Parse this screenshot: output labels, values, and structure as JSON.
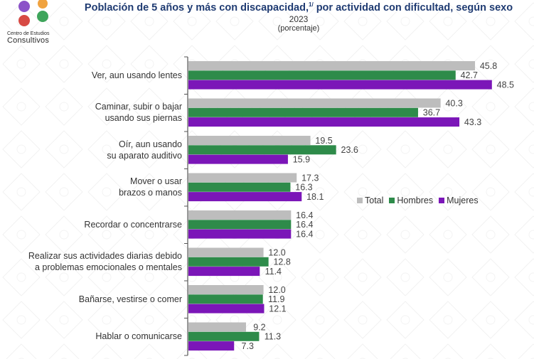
{
  "logo": {
    "line1": "Centro de Estudios",
    "line2": "Consultivos"
  },
  "header": {
    "title": "Población de 5 años y más con discapacidad,",
    "title_sup": "1/",
    "title_rest": " por actividad con dificultad, según sexo",
    "year": "2023",
    "unit": "(porcentaje)"
  },
  "colors": {
    "total": "#bdbdbd",
    "hombres": "#2e8b4a",
    "mujeres": "#7b16b8",
    "axis": "#555555",
    "title": "#1f3b72"
  },
  "chart_data": {
    "type": "bar",
    "orientation": "horizontal",
    "categories": [
      "Ver, aun usando lentes",
      "Caminar, subir o bajar\nusando sus piernas",
      "Oír, aun usando\nsu aparato auditivo",
      "Mover o usar\nbrazos o manos",
      "Recordar o concentrarse",
      "Realizar sus actividades diarias debido\na problemas emocionales o mentales",
      "Bañarse, vestirse o comer",
      "Hablar o comunicarse"
    ],
    "series": [
      {
        "name": "Total",
        "color": "#bdbdbd",
        "values": [
          45.8,
          40.3,
          19.5,
          17.3,
          16.4,
          12.0,
          12.0,
          9.2
        ]
      },
      {
        "name": "Hombres",
        "color": "#2e8b4a",
        "values": [
          42.7,
          36.7,
          23.6,
          16.3,
          16.4,
          12.8,
          11.9,
          11.3
        ]
      },
      {
        "name": "Mujeres",
        "color": "#7b16b8",
        "values": [
          48.5,
          43.3,
          15.9,
          18.1,
          16.4,
          11.4,
          12.1,
          7.3
        ]
      }
    ],
    "value_labels": [
      [
        "45.8",
        "42.7",
        "48.5"
      ],
      [
        "40.3",
        "36.7",
        "43.3"
      ],
      [
        "19.5",
        "23.6",
        "15.9"
      ],
      [
        "17.3",
        "16.3",
        "18.1"
      ],
      [
        "16.4",
        "16.4",
        "16.4"
      ],
      [
        "12.0",
        "12.8",
        "11.4"
      ],
      [
        "12.0",
        "11.9",
        "12.1"
      ],
      [
        "9.2",
        "11.3",
        "7.3"
      ]
    ],
    "xlim": [
      0,
      55
    ],
    "grid": false,
    "legend": "middle-right"
  }
}
